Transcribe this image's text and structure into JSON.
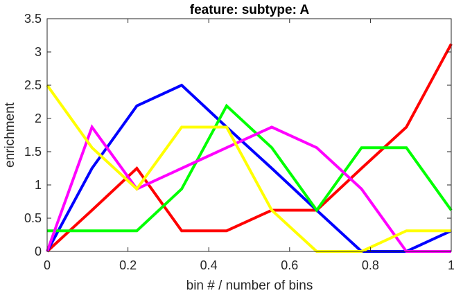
{
  "chart_data": {
    "type": "line",
    "title": "feature: subtype: A",
    "xlabel": "bin # / number of bins",
    "ylabel": "enrichment",
    "xlim": [
      0,
      1
    ],
    "ylim": [
      0,
      3.5
    ],
    "xticks": [
      "0",
      "0.2",
      "0.4",
      "0.6",
      "0.8",
      "1"
    ],
    "yticks": [
      "0",
      "0.5",
      "1",
      "1.5",
      "2",
      "2.5",
      "3",
      "3.5"
    ],
    "grid": false,
    "x": [
      0,
      0.111,
      0.222,
      0.333,
      0.444,
      0.556,
      0.667,
      0.778,
      0.889,
      1.0
    ],
    "series": [
      {
        "color": "#ff0000",
        "values": [
          0,
          0.62,
          1.25,
          0.31,
          0.31,
          0.62,
          0.62,
          1.25,
          1.87,
          3.12
        ]
      },
      {
        "color": "#0000ff",
        "values": [
          0,
          1.25,
          2.19,
          2.5,
          1.87,
          1.25,
          0.62,
          0,
          0,
          0.31
        ]
      },
      {
        "color": "#00ff00",
        "values": [
          0.31,
          0.31,
          0.31,
          0.94,
          2.19,
          1.56,
          0.62,
          1.56,
          1.56,
          0.62
        ]
      },
      {
        "color": "#ff00ff",
        "values": [
          0,
          1.87,
          0.94,
          1.25,
          1.56,
          1.87,
          1.56,
          0.94,
          0,
          0
        ]
      },
      {
        "color": "#ffff00",
        "values": [
          2.5,
          1.56,
          0.94,
          1.87,
          1.87,
          0.62,
          0,
          0,
          0.31,
          0.31
        ]
      }
    ]
  }
}
